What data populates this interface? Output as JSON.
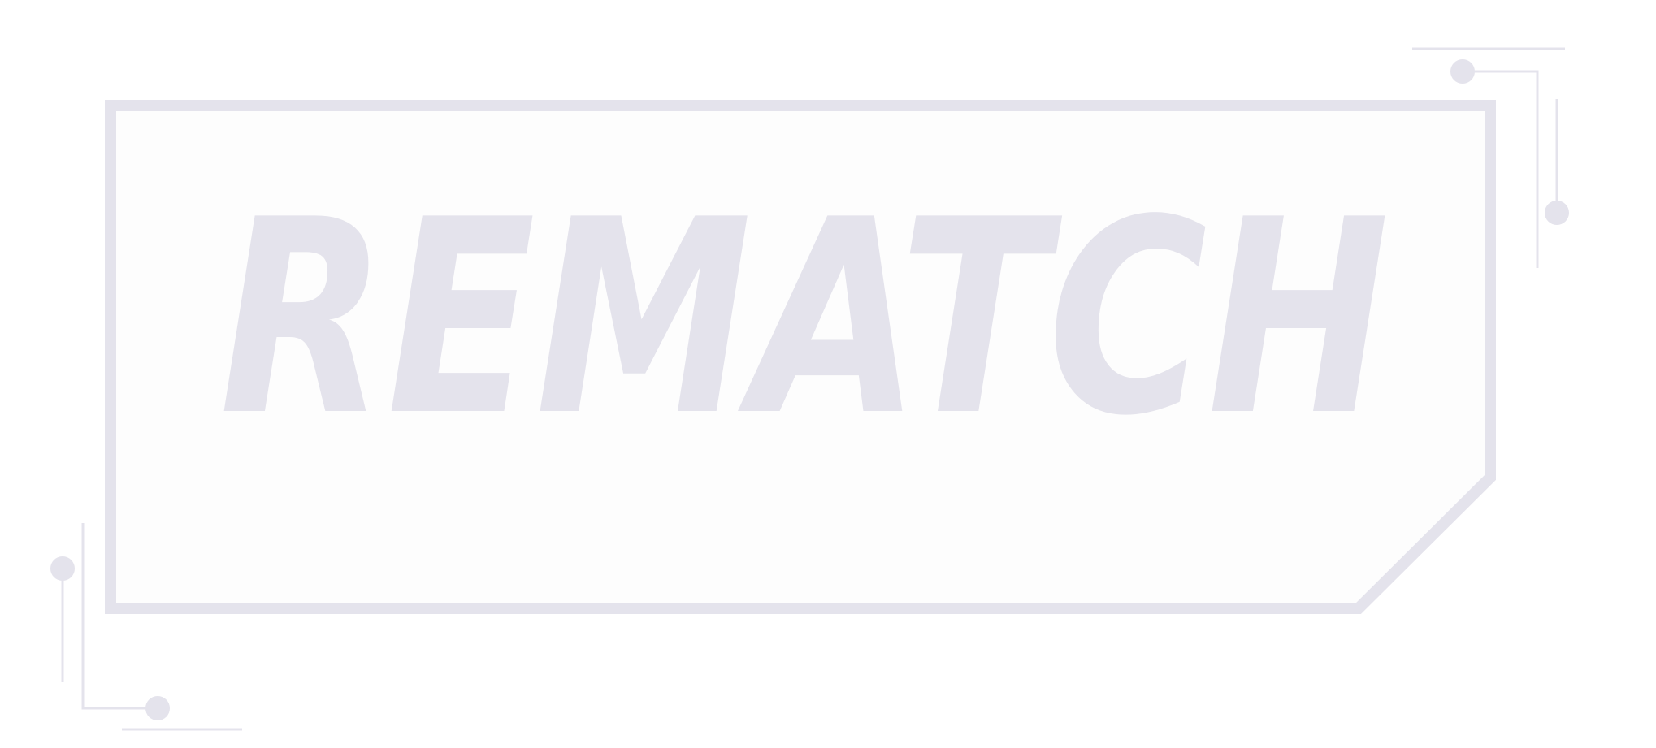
{
  "button": {
    "label": "REMATCH"
  },
  "colors": {
    "frame": "#E4E3EC",
    "fill": "#FDFDFD",
    "text": "#E4E3EC",
    "background": "#FFFFFF"
  },
  "icons": {
    "top_right": "circuit-trace-decoration",
    "bottom_left": "circuit-trace-decoration"
  }
}
